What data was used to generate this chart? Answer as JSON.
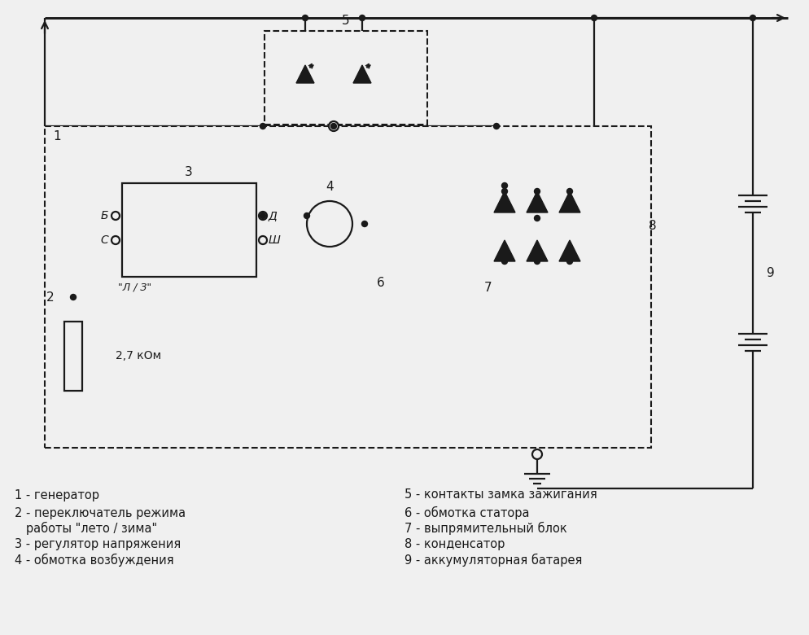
{
  "bg": "#f0f0f0",
  "lc": "#1a1a1a",
  "lw": 1.6,
  "legend": [
    [
      18,
      608,
      "1 - генератор"
    ],
    [
      18,
      630,
      "2 - переключатель режима"
    ],
    [
      18,
      649,
      "   работы \"лето / зима\""
    ],
    [
      18,
      668,
      "3 - регулятор напряжения"
    ],
    [
      18,
      688,
      "4 - обмотка возбуждения"
    ],
    [
      497,
      608,
      "5 - контакты замка зажигания"
    ],
    [
      497,
      630,
      "6 - обмотка статора"
    ],
    [
      497,
      649,
      "7 - выпрямительный блок"
    ],
    [
      497,
      668,
      "8 - конденсатор"
    ],
    [
      497,
      688,
      "9 - аккумуляторная батарея"
    ]
  ]
}
